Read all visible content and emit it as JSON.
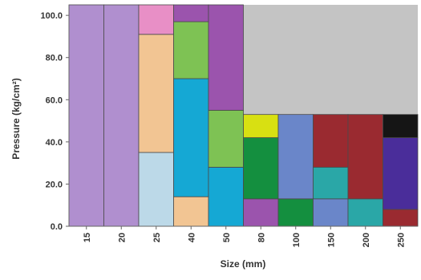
{
  "chart_data": {
    "type": "bar",
    "stacked": true,
    "title": "",
    "xlabel": "Size (mm)",
    "ylabel": "Pressure (kg/cm²)",
    "ylim": [
      0,
      105
    ],
    "yticks": [
      "0.0",
      "20.0",
      "40.0",
      "60.0",
      "80.0",
      "100.0"
    ],
    "ytick_values": [
      0,
      20,
      40,
      60,
      80,
      100
    ],
    "categories": [
      "15",
      "20",
      "25",
      "40",
      "50",
      "80",
      "100",
      "150",
      "200",
      "250"
    ],
    "unavailable_region": {
      "color": "#c4c4c4",
      "from_category": "80",
      "from_y": 53,
      "to_y": 105
    },
    "columns": [
      {
        "category": "15",
        "segments": [
          {
            "from": 0,
            "to": 105,
            "color": "#b08fcf"
          }
        ]
      },
      {
        "category": "20",
        "segments": [
          {
            "from": 0,
            "to": 105,
            "color": "#b08fcf"
          }
        ]
      },
      {
        "category": "25",
        "segments": [
          {
            "from": 0,
            "to": 35,
            "color": "#bcd9e8"
          },
          {
            "from": 35,
            "to": 91,
            "color": "#f2c593"
          },
          {
            "from": 91,
            "to": 105,
            "color": "#e88fc6"
          }
        ]
      },
      {
        "category": "40",
        "segments": [
          {
            "from": 0,
            "to": 14,
            "color": "#f2c593"
          },
          {
            "from": 14,
            "to": 70,
            "color": "#15a8d4"
          },
          {
            "from": 70,
            "to": 97,
            "color": "#7ec254"
          },
          {
            "from": 97,
            "to": 105,
            "color": "#9b54ad"
          }
        ]
      },
      {
        "category": "50",
        "segments": [
          {
            "from": 0,
            "to": 28,
            "color": "#15a8d4"
          },
          {
            "from": 28,
            "to": 55,
            "color": "#7ec254"
          },
          {
            "from": 55,
            "to": 105,
            "color": "#9b54ad"
          }
        ]
      },
      {
        "category": "80",
        "segments": [
          {
            "from": 0,
            "to": 13,
            "color": "#9b54ad"
          },
          {
            "from": 13,
            "to": 42,
            "color": "#148f3f"
          },
          {
            "from": 42,
            "to": 53,
            "color": "#d8e012"
          }
        ]
      },
      {
        "category": "100",
        "segments": [
          {
            "from": 0,
            "to": 13,
            "color": "#148f3f"
          },
          {
            "from": 13,
            "to": 53,
            "color": "#6a86c9"
          }
        ]
      },
      {
        "category": "150",
        "segments": [
          {
            "from": 0,
            "to": 13,
            "color": "#6a86c9"
          },
          {
            "from": 13,
            "to": 28,
            "color": "#2aa7a7"
          },
          {
            "from": 28,
            "to": 53,
            "color": "#9a2a30"
          }
        ]
      },
      {
        "category": "200",
        "segments": [
          {
            "from": 0,
            "to": 13,
            "color": "#2aa7a7"
          },
          {
            "from": 13,
            "to": 53,
            "color": "#9a2a30"
          }
        ]
      },
      {
        "category": "250",
        "segments": [
          {
            "from": 0,
            "to": 8,
            "color": "#9a2a30"
          },
          {
            "from": 8,
            "to": 42,
            "color": "#4a2d9a"
          },
          {
            "from": 42,
            "to": 53,
            "color": "#151515"
          }
        ]
      }
    ],
    "grid": false,
    "legend": "none"
  }
}
